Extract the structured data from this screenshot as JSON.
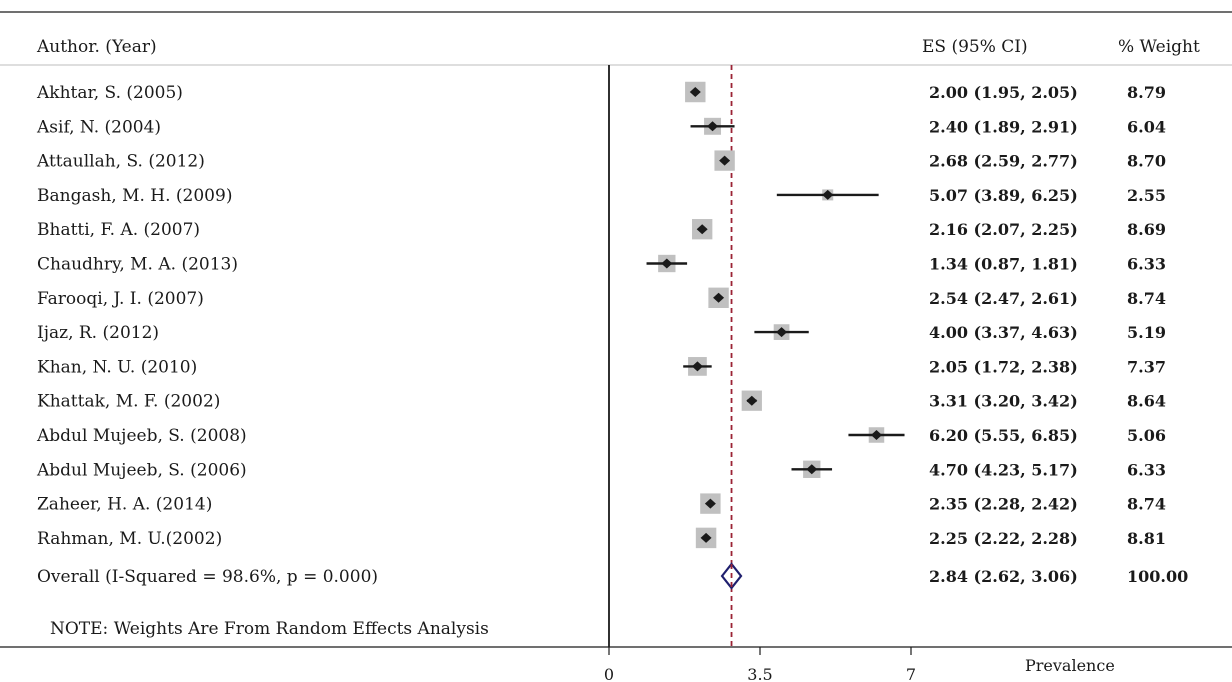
{
  "chart_data": {
    "type": "forest",
    "headers": {
      "study": "Author. (Year)",
      "es": "ES (95% CI)",
      "weight": "% Weight"
    },
    "studies": [
      {
        "label": "Akhtar, S. (2005)",
        "es": 2.0,
        "lo": 1.95,
        "hi": 2.05,
        "es_text": "2.00 (1.95, 2.05)",
        "weight": 8.79,
        "weight_text": "8.79"
      },
      {
        "label": "Asif, N. (2004)",
        "es": 2.4,
        "lo": 1.89,
        "hi": 2.91,
        "es_text": "2.40 (1.89, 2.91)",
        "weight": 6.04,
        "weight_text": "6.04"
      },
      {
        "label": "Attaullah, S. (2012)",
        "es": 2.68,
        "lo": 2.59,
        "hi": 2.77,
        "es_text": "2.68 (2.59, 2.77)",
        "weight": 8.7,
        "weight_text": "8.70"
      },
      {
        "label": "Bangash, M. H. (2009)",
        "es": 5.07,
        "lo": 3.89,
        "hi": 6.25,
        "es_text": "5.07 (3.89, 6.25)",
        "weight": 2.55,
        "weight_text": "2.55"
      },
      {
        "label": "Bhatti, F. A. (2007)",
        "es": 2.16,
        "lo": 2.07,
        "hi": 2.25,
        "es_text": "2.16 (2.07, 2.25)",
        "weight": 8.69,
        "weight_text": "8.69"
      },
      {
        "label": "Chaudhry, M. A. (2013)",
        "es": 1.34,
        "lo": 0.87,
        "hi": 1.81,
        "es_text": "1.34 (0.87, 1.81)",
        "weight": 6.33,
        "weight_text": "6.33"
      },
      {
        "label": "Farooqi, J. I. (2007)",
        "es": 2.54,
        "lo": 2.47,
        "hi": 2.61,
        "es_text": "2.54 (2.47, 2.61)",
        "weight": 8.74,
        "weight_text": "8.74"
      },
      {
        "label": "Ijaz, R. (2012)",
        "es": 4.0,
        "lo": 3.37,
        "hi": 4.63,
        "es_text": "4.00 (3.37, 4.63)",
        "weight": 5.19,
        "weight_text": "5.19"
      },
      {
        "label": "Khan, N. U. (2010)",
        "es": 2.05,
        "lo": 1.72,
        "hi": 2.38,
        "es_text": "2.05 (1.72, 2.38)",
        "weight": 7.37,
        "weight_text": "7.37"
      },
      {
        "label": "Khattak, M. F. (2002)",
        "es": 3.31,
        "lo": 3.2,
        "hi": 3.42,
        "es_text": "3.31 (3.20, 3.42)",
        "weight": 8.64,
        "weight_text": "8.64"
      },
      {
        "label": "Abdul Mujeeb, S. (2008)",
        "es": 6.2,
        "lo": 5.55,
        "hi": 6.85,
        "es_text": "6.20 (5.55, 6.85)",
        "weight": 5.06,
        "weight_text": "5.06"
      },
      {
        "label": "Abdul Mujeeb, S. (2006)",
        "es": 4.7,
        "lo": 4.23,
        "hi": 5.17,
        "es_text": "4.70 (4.23, 5.17)",
        "weight": 6.33,
        "weight_text": "6.33"
      },
      {
        "label": "Zaheer, H. A. (2014)",
        "es": 2.35,
        "lo": 2.28,
        "hi": 2.42,
        "es_text": "2.35 (2.28, 2.42)",
        "weight": 8.74,
        "weight_text": "8.74"
      },
      {
        "label": "Rahman, M. U.(2002)",
        "es": 2.25,
        "lo": 2.22,
        "hi": 2.28,
        "es_text": "2.25 (2.22, 2.28)",
        "weight": 8.81,
        "weight_text": "8.81"
      }
    ],
    "overall": {
      "label": "Overall  (I-Squared = 98.6%, p = 0.000)",
      "es": 2.84,
      "lo": 2.62,
      "hi": 3.06,
      "es_text": "2.84 (2.62, 3.06)",
      "weight_text": "100.00"
    },
    "note": "NOTE: Weights Are From Random Effects Analysis",
    "x_ticks": [
      0,
      3.5,
      7
    ],
    "x_tick_labels": [
      "0",
      "3.5",
      "7"
    ],
    "xlim": [
      0,
      7.0
    ],
    "xlabel": "Prevalence",
    "reference_line": 2.84,
    "colors": {
      "box": "#c0c0c0",
      "point": "#1a1a1a",
      "ci": "#1a1a1a",
      "reference": "#9b2335",
      "overall_diamond": "#1f1f6e",
      "axis": "#1a1a1a"
    }
  }
}
